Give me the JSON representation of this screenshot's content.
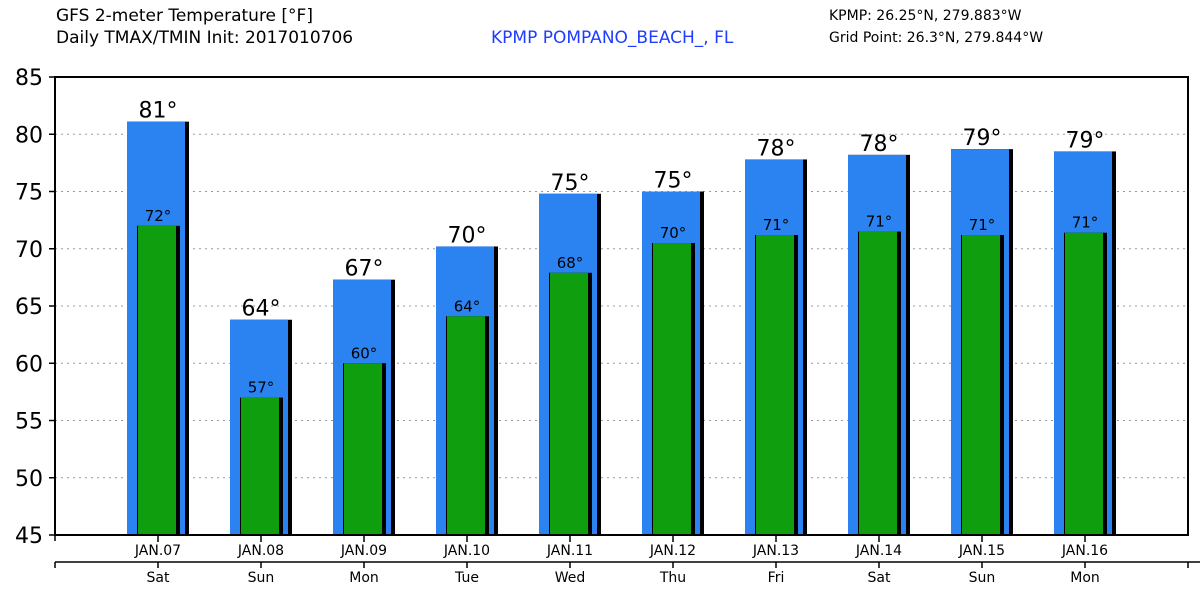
{
  "header": {
    "title_line1": "GFS 2-meter Temperature [°F]",
    "title_line2": "Daily TMAX/TMIN Init: 2017010706",
    "station": "KPMP POMPANO_BEACH_, FL",
    "station_coords": "KPMP: 26.25°N, 279.883°W",
    "grid_point": "Grid Point: 26.3°N, 279.844°W"
  },
  "colors": {
    "tmax": "#2b83f2",
    "tmin": "#0e9e0e",
    "station_text": "#1f3cff"
  },
  "chart_data": {
    "type": "bar",
    "ylim": [
      45,
      85
    ],
    "yticks": [
      45,
      50,
      55,
      60,
      65,
      70,
      75,
      80,
      85
    ],
    "grid": "horizontal dotted",
    "categories": [
      "JAN.07",
      "JAN.08",
      "JAN.09",
      "JAN.10",
      "JAN.11",
      "JAN.12",
      "JAN.13",
      "JAN.14",
      "JAN.15",
      "JAN.16"
    ],
    "weekdays": [
      "Sat",
      "Sun",
      "Mon",
      "Tue",
      "Wed",
      "Thu",
      "Fri",
      "Sat",
      "Sun",
      "Mon"
    ],
    "series": [
      {
        "key": "tmax",
        "values": [
          81.1,
          63.8,
          67.3,
          70.2,
          74.8,
          75.0,
          77.8,
          78.2,
          78.7,
          78.5
        ],
        "labels": [
          "81°",
          "64°",
          "67°",
          "70°",
          "75°",
          "75°",
          "78°",
          "78°",
          "79°",
          "79°"
        ]
      },
      {
        "key": "tmin",
        "values": [
          72.0,
          57.0,
          60.0,
          64.1,
          67.9,
          70.5,
          71.2,
          71.5,
          71.2,
          71.4
        ],
        "labels": [
          "72°",
          "57°",
          "60°",
          "64°",
          "68°",
          "70°",
          "71°",
          "71°",
          "71°",
          "71°"
        ]
      }
    ]
  }
}
